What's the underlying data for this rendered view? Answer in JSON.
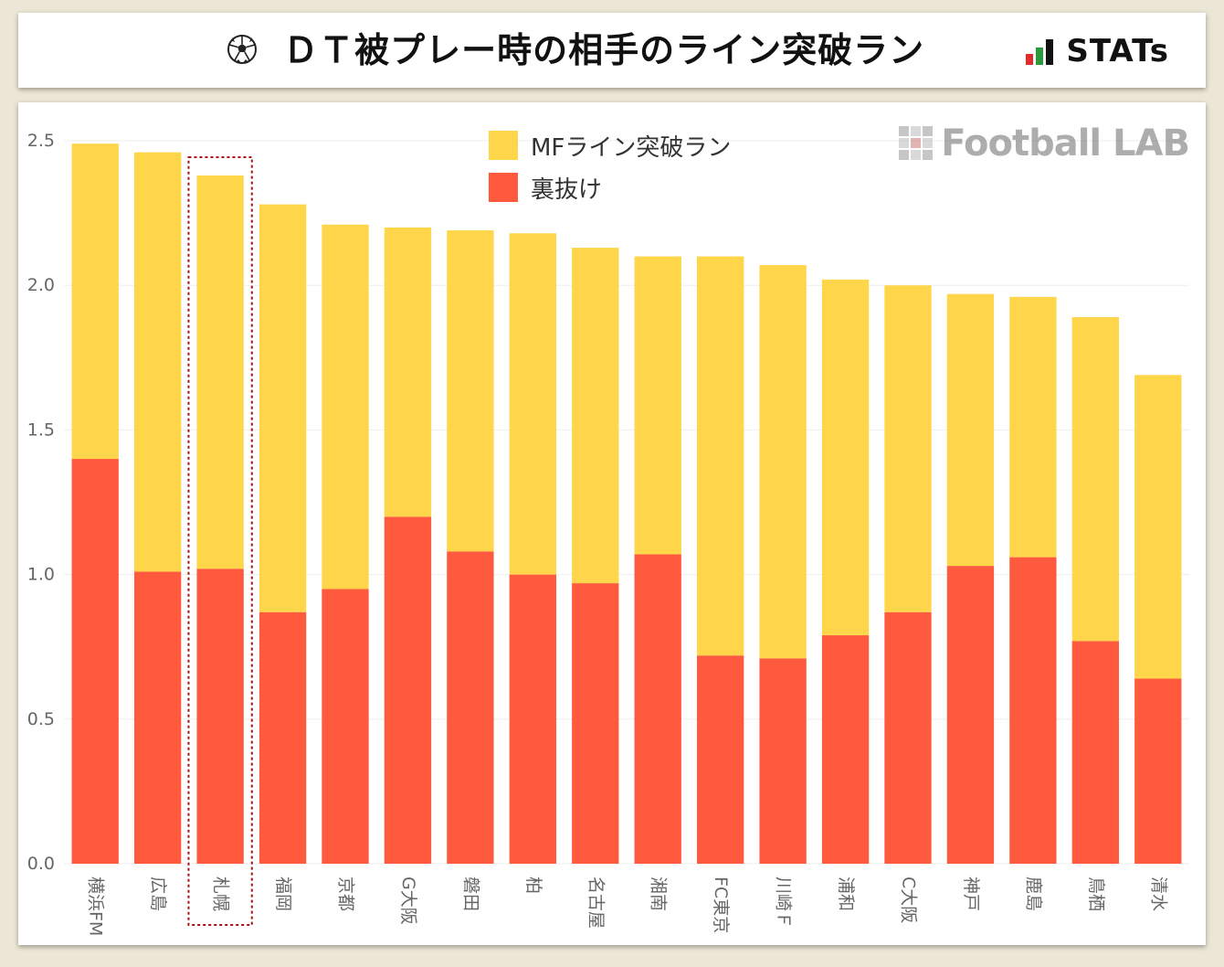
{
  "header": {
    "title": "ＤＴ被プレー時の相手のライン突破ラン",
    "brand": "STATs",
    "brand_colors": [
      "#2c9a3c",
      "#e32b2b",
      "#111111"
    ]
  },
  "watermark": {
    "text": "Football LAB"
  },
  "chart_data": {
    "type": "bar",
    "stacked": true,
    "categories": [
      "横浜FM",
      "広島",
      "札幌",
      "福岡",
      "京都",
      "G大阪",
      "磐田",
      "柏",
      "名古屋",
      "湘南",
      "FC東京",
      "川崎Ｆ",
      "浦和",
      "C大阪",
      "神戸",
      "鹿島",
      "鳥栖",
      "清水"
    ],
    "series": [
      {
        "name": "裏抜け",
        "color": "#ff5a3d",
        "values": [
          1.4,
          1.01,
          1.02,
          0.87,
          0.95,
          1.2,
          1.08,
          1.0,
          0.97,
          1.07,
          0.72,
          0.71,
          0.79,
          0.87,
          1.03,
          1.06,
          0.77,
          0.64
        ]
      },
      {
        "name": "MFライン突破ラン",
        "color": "#ffd54a",
        "values": [
          1.09,
          1.45,
          1.36,
          1.41,
          1.26,
          1.0,
          1.11,
          1.18,
          1.16,
          1.03,
          1.38,
          1.36,
          1.23,
          1.13,
          0.94,
          0.9,
          1.12,
          1.05
        ]
      }
    ],
    "ylim": [
      0,
      2.5
    ],
    "yticks": [
      "0.0",
      "0.5",
      "1.0",
      "1.5",
      "2.0",
      "2.5"
    ],
    "highlight_category": "札幌",
    "grid": true,
    "legend_position": "top-center"
  }
}
